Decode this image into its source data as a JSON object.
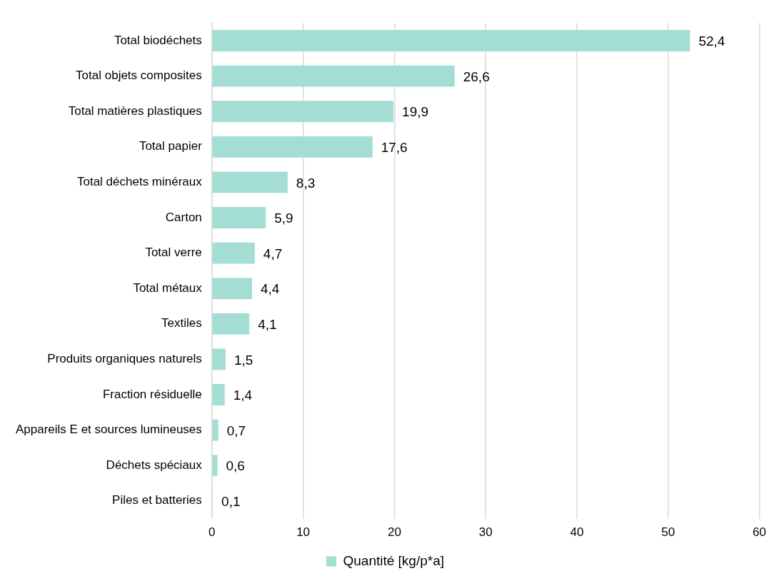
{
  "chart_data": {
    "type": "bar",
    "orientation": "horizontal",
    "categories": [
      "Total biodéchets",
      "Total objets composites",
      "Total matières plastiques",
      "Total papier",
      "Total déchets minéraux",
      "Carton",
      "Total verre",
      "Total métaux",
      "Textiles",
      "Produits organiques naturels",
      "Fraction résiduelle",
      "Appareils E et sources lumineuses",
      "Déchets spéciaux",
      "Piles et batteries"
    ],
    "series": [
      {
        "name": "Quantité [kg/p*a]",
        "color": "#a3ddd4",
        "values": [
          52.4,
          26.6,
          19.9,
          17.6,
          8.3,
          5.9,
          4.7,
          4.4,
          4.1,
          1.5,
          1.4,
          0.7,
          0.6,
          0.1
        ],
        "value_labels": [
          "52,4",
          "26,6",
          "19,9",
          "17,6",
          "8,3",
          "5,9",
          "4,7",
          "4,4",
          "4,1",
          "1,5",
          "1,4",
          "0,7",
          "0,6",
          "0,1"
        ]
      }
    ],
    "xlim": [
      0,
      60
    ],
    "xticks": [
      0,
      10,
      20,
      30,
      40,
      50,
      60
    ],
    "grid": "x",
    "legend": "bottom"
  }
}
